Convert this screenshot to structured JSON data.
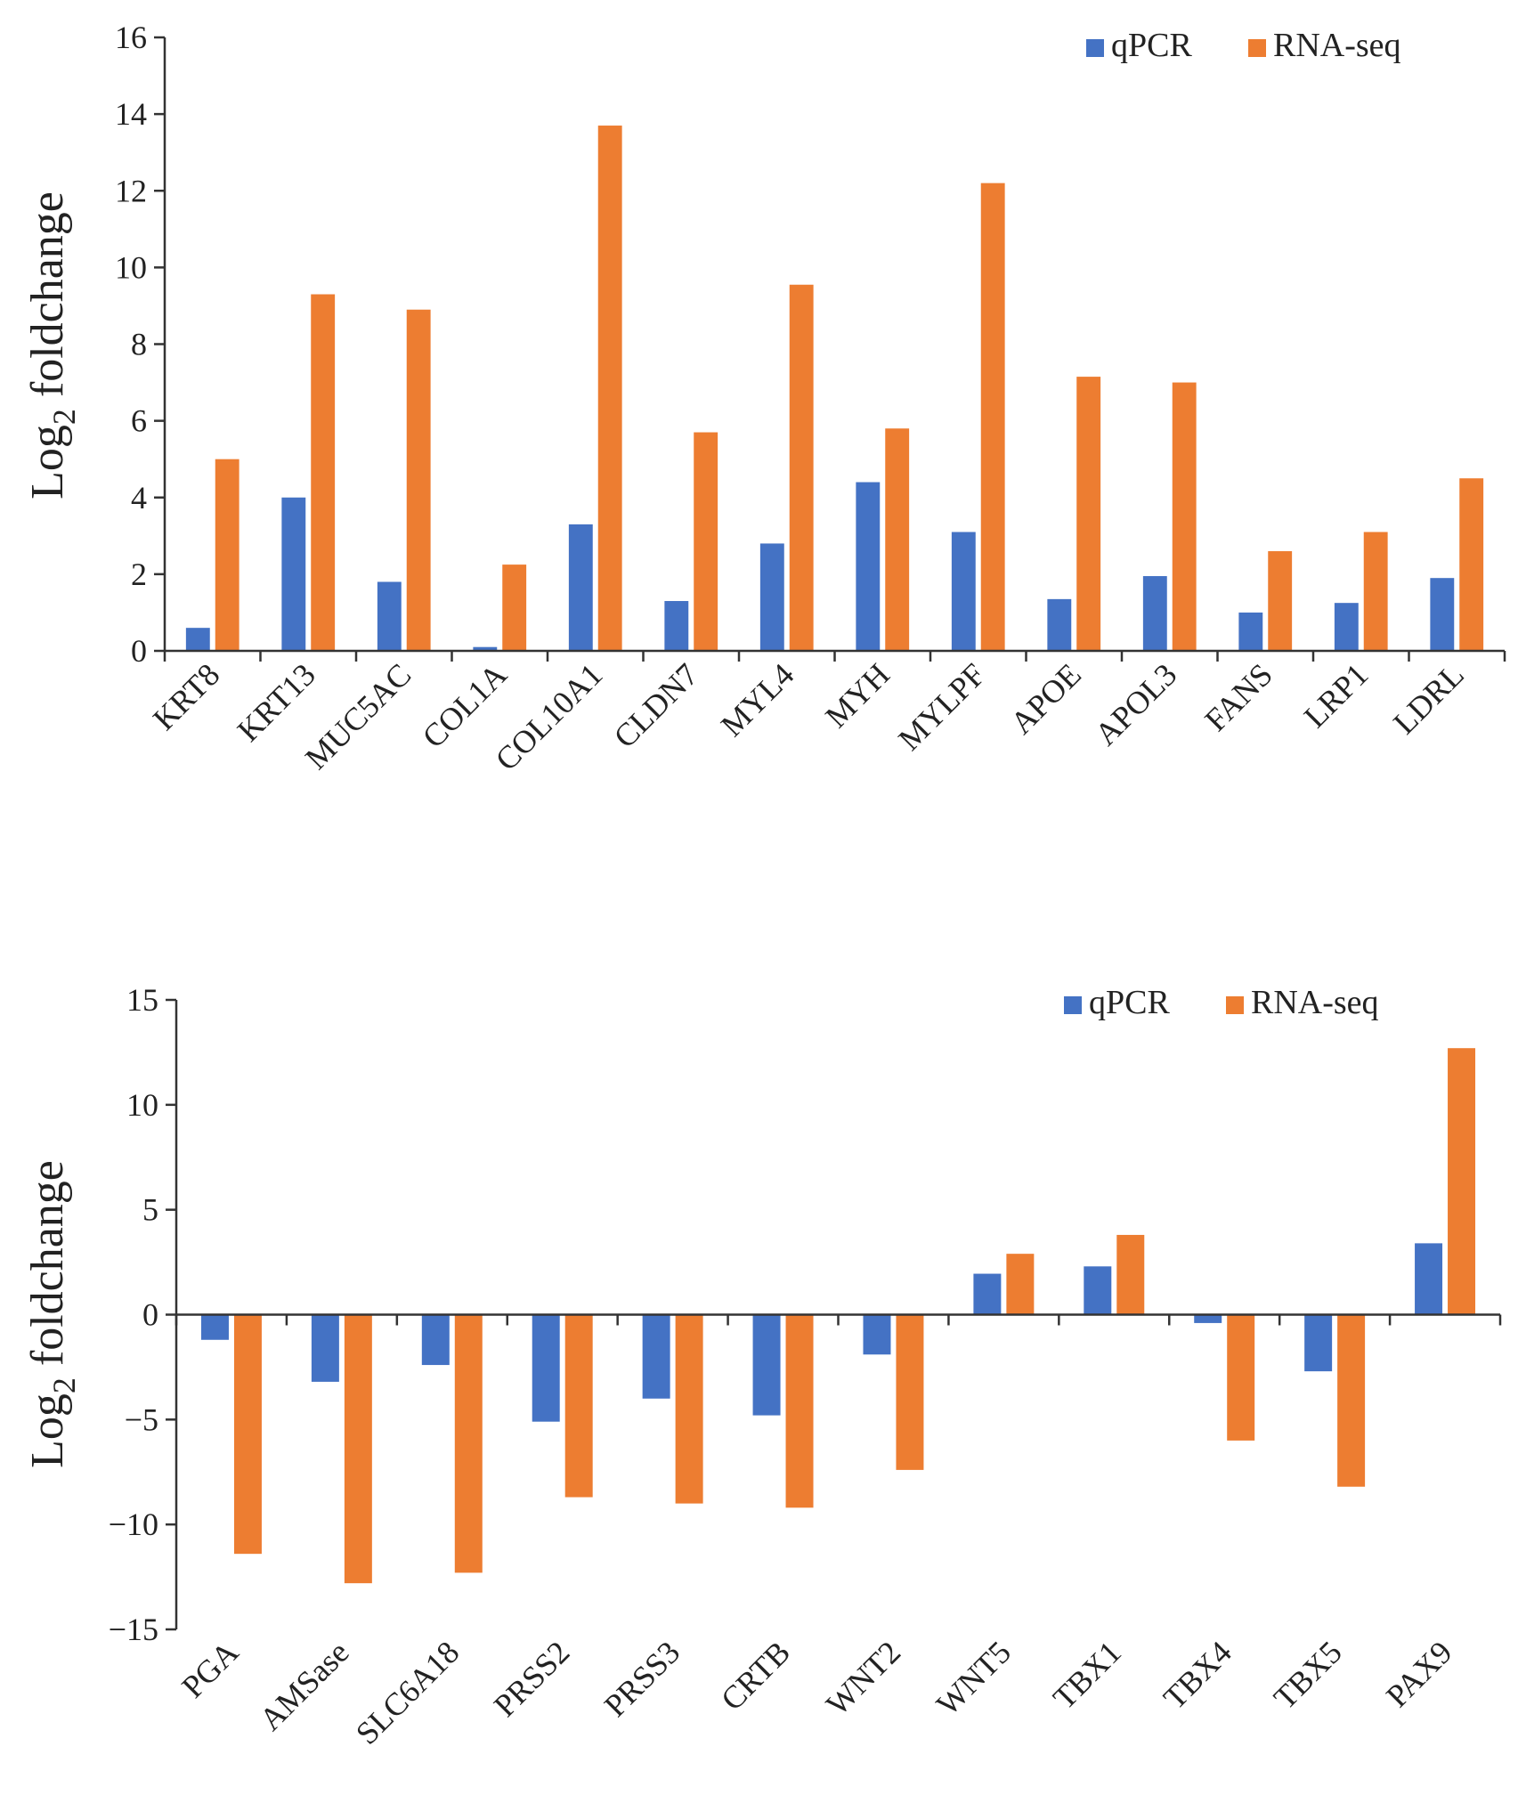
{
  "colors": {
    "qpcr": "#4472C4",
    "rnaseq": "#ED7D31"
  },
  "chart_data": [
    {
      "type": "bar",
      "title": "",
      "xlabel": "",
      "ylabel": "Log",
      "ylabel_subscript": "2",
      "ylabel_suffix": " foldchange",
      "ylim": [
        0,
        16
      ],
      "yticks": [
        0,
        2,
        4,
        6,
        8,
        10,
        12,
        14,
        16
      ],
      "yticklabels": [
        "0",
        "2",
        "4",
        "6",
        "8",
        "10",
        "12",
        "14",
        "16"
      ],
      "legend_position": "top-right",
      "categories": [
        "KRT8",
        "KRT13",
        "MUC5AC",
        "COL1A",
        "COL10A1",
        "CLDN7",
        "MYL4",
        "MYH",
        "MYLPF",
        "APOE",
        "APOL3",
        "FANS",
        "LRP1",
        "LDRL"
      ],
      "series": [
        {
          "name": "qPCR",
          "values": [
            0.6,
            4.0,
            1.8,
            0.1,
            3.3,
            1.3,
            2.8,
            4.4,
            3.1,
            1.35,
            1.95,
            1.0,
            1.25,
            1.9
          ]
        },
        {
          "name": "RNA-seq",
          "values": [
            5.0,
            9.3,
            8.9,
            2.25,
            13.7,
            5.7,
            9.55,
            5.8,
            12.2,
            7.15,
            7.0,
            2.6,
            3.1,
            4.5
          ]
        }
      ]
    },
    {
      "type": "bar",
      "title": "",
      "xlabel": "",
      "ylabel": "Log",
      "ylabel_subscript": "2",
      "ylabel_suffix": " foldchange",
      "ylim": [
        -15,
        15
      ],
      "yticks": [
        -15,
        -10,
        -5,
        0,
        5,
        10,
        15
      ],
      "yticklabels": [
        "−15",
        "−10",
        "−5",
        "0",
        "5",
        "10",
        "15"
      ],
      "legend_position": "top-right",
      "categories": [
        "PGA",
        "AMSase",
        "SLC6A18",
        "PRSS2",
        "PRSS3",
        "CRTB",
        "WNT2",
        "WNT5",
        "TBX1",
        "TBX4",
        "TBX5",
        "PAX9"
      ],
      "series": [
        {
          "name": "qPCR",
          "values": [
            -1.2,
            -3.2,
            -2.4,
            -5.1,
            -4.0,
            -4.8,
            -1.9,
            1.95,
            2.3,
            -0.4,
            -2.7,
            3.4
          ]
        },
        {
          "name": "RNA-seq",
          "values": [
            -11.4,
            -12.8,
            -12.3,
            -8.7,
            -9.0,
            -9.2,
            -7.4,
            2.9,
            3.8,
            -6.0,
            -8.2,
            12.7
          ]
        }
      ]
    }
  ]
}
